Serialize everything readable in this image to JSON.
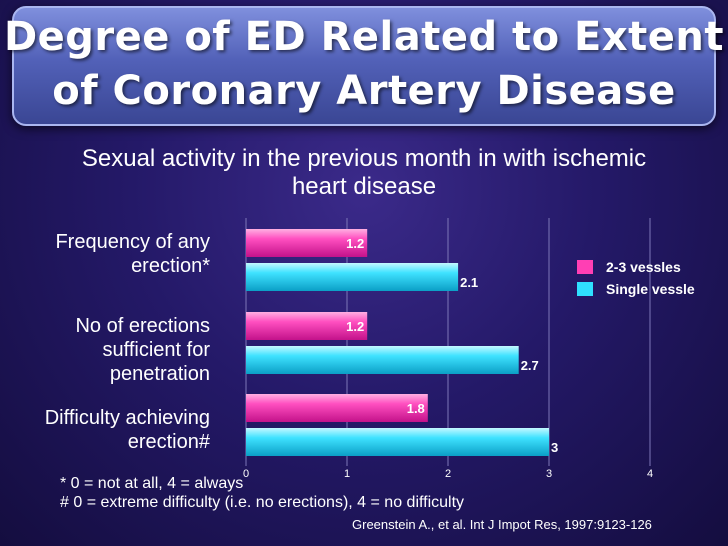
{
  "title": {
    "line1": "Degree of ED Related to Extent",
    "line2": "of Coronary Artery Disease"
  },
  "subtitle": {
    "line1": "Sexual activity in the previous month in with ischemic",
    "line2": "heart disease"
  },
  "chart_data": {
    "type": "bar",
    "orientation": "horizontal",
    "categories": [
      "Frequency of any erection*",
      "No of erections sufficient for penetration",
      "Difficulty achieving erection#"
    ],
    "category_lines": [
      [
        "Frequency of any",
        "erection*"
      ],
      [
        "No of erections",
        "sufficient for",
        "penetration"
      ],
      [
        "Difficulty achieving",
        "erection#"
      ]
    ],
    "series": [
      {
        "name": "2-3 vessles",
        "color": "#ff3fb4",
        "values": [
          1.2,
          1.2,
          1.8
        ],
        "labels": [
          "1.2",
          "1.2",
          "1.8"
        ]
      },
      {
        "name": "Single vessle",
        "color": "#2fe0ff",
        "values": [
          2.1,
          2.7,
          3
        ],
        "labels": [
          "2.1",
          "2.7",
          "3"
        ]
      }
    ],
    "xlim": [
      0,
      4
    ],
    "xticks": [
      "0",
      "1",
      "2",
      "3",
      "4"
    ],
    "grid": true,
    "legend": "right"
  },
  "notes": {
    "note1": "* 0 = not at all, 4 = always",
    "note2": "# 0 = extreme difficulty (i.e. no erections), 4 = no difficulty"
  },
  "source": "Greenstein A., et al. Int J Impot Res, 1997:9123-126"
}
